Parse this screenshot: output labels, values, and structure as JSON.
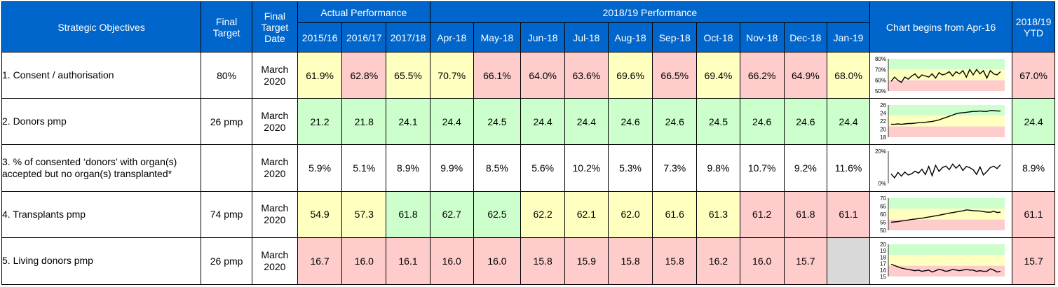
{
  "header": {
    "objectives": "Strategic Objectives",
    "final_target": "Final Target",
    "final_target_date": "Final Target Date",
    "actual_performance": "Actual Performance",
    "current_performance": "2018/19 Performance",
    "chart": "Chart begins from Apr-16",
    "ytd": "2018/19 YTD",
    "periods": [
      "2015/16",
      "2016/17",
      "2017/18",
      "Apr-18",
      "May-18",
      "Jun-18",
      "Jul-18",
      "Aug-18",
      "Sep-18",
      "Oct-18",
      "Nov-18",
      "Dec-18",
      "Jan-19"
    ]
  },
  "colors": {
    "header_bg": "#0066cc",
    "green": "#ccffcc",
    "amber": "#ffffc0",
    "red": "#ffcccc",
    "no_data": "#d9d9d9"
  },
  "rows": [
    {
      "objective": "1. Consent / authorisation",
      "target": "80%",
      "date": [
        "March",
        "2020"
      ],
      "values": [
        "61.9%",
        "62.8%",
        "65.5%",
        "70.7%",
        "66.1%",
        "64.0%",
        "63.6%",
        "69.6%",
        "66.5%",
        "69.4%",
        "66.2%",
        "64.9%",
        "68.0%"
      ],
      "status": [
        "amber",
        "red",
        "amber",
        "amber",
        "red",
        "red",
        "red",
        "amber",
        "red",
        "amber",
        "red",
        "red",
        "amber"
      ],
      "ytd": "67.0%",
      "ytd_status": "red",
      "spark": {
        "yticks": [
          "80%",
          "70%",
          "60%",
          "50%"
        ],
        "ymin": 50,
        "ymax": 80,
        "series": [
          59,
          63,
          60,
          58,
          63,
          61,
          64,
          66,
          62,
          65,
          64,
          63,
          66,
          62,
          67,
          65,
          66,
          68,
          64,
          68,
          66,
          69,
          63,
          70,
          65,
          70,
          66,
          69,
          62,
          69,
          66,
          65,
          68
        ]
      }
    },
    {
      "objective": "2. Donors pmp",
      "target": "26 pmp",
      "date": [
        "March",
        "2020"
      ],
      "values": [
        "21.2",
        "21.8",
        "24.1",
        "24.4",
        "24.5",
        "24.4",
        "24.4",
        "24.6",
        "24.6",
        "24.5",
        "24.6",
        "24.6",
        "24.4"
      ],
      "status": [
        "green",
        "green",
        "green",
        "green",
        "green",
        "green",
        "green",
        "green",
        "green",
        "green",
        "green",
        "green",
        "green"
      ],
      "ytd": "24.4",
      "ytd_status": "green",
      "spark": {
        "yticks": [
          "26",
          "24",
          "22",
          "20",
          "18"
        ],
        "ymin": 18,
        "ymax": 26,
        "series": [
          21.2,
          21.2,
          21.3,
          21.2,
          21.3,
          21.4,
          21.4,
          21.5,
          21.6,
          21.6,
          21.7,
          21.8,
          21.9,
          22.1,
          22.3,
          22.6,
          22.9,
          23.2,
          23.5,
          23.8,
          24.0,
          24.1,
          24.2,
          24.3,
          24.4,
          24.4,
          24.5,
          24.4,
          24.4,
          24.6,
          24.6,
          24.5,
          24.5
        ]
      }
    },
    {
      "objective": "3. % of consented ‘donors’ with organ(s) accepted but no organ(s) transplanted*",
      "target": "",
      "date": [
        "March",
        "2020"
      ],
      "values": [
        "5.9%",
        "5.1%",
        "8.9%",
        "9.9%",
        "8.5%",
        "5.6%",
        "10.2%",
        "5.3%",
        "7.3%",
        "9.8%",
        "10.7%",
        "9.2%",
        "11.6%"
      ],
      "status": [
        "none",
        "none",
        "none",
        "none",
        "none",
        "none",
        "none",
        "none",
        "none",
        "none",
        "none",
        "none",
        "none"
      ],
      "ytd": "8.9%",
      "ytd_status": "none",
      "spark": {
        "yticks": [
          "20%",
          "0%"
        ],
        "ymin": 0,
        "ymax": 20,
        "series": [
          5.9,
          3.5,
          6.8,
          4.5,
          7.0,
          5.2,
          6.0,
          7.6,
          6.3,
          8.8,
          5.5,
          10.5,
          4.8,
          11.2,
          7.5,
          9.8,
          10.8,
          8.5,
          12.0,
          9.5,
          11.5,
          8.0,
          10.5,
          9.8,
          8.5,
          5.6,
          10.2,
          5.3,
          7.3,
          9.8,
          10.7,
          9.2,
          11.6
        ]
      }
    },
    {
      "objective": "4. Transplants pmp",
      "target": "74 pmp",
      "date": [
        "March",
        "2020"
      ],
      "values": [
        "54.9",
        "57.3",
        "61.8",
        "62.7",
        "62.5",
        "62.2",
        "62.1",
        "62.0",
        "61.6",
        "61.3",
        "61.2",
        "61.8",
        "61.1"
      ],
      "status": [
        "amber",
        "amber",
        "green",
        "green",
        "green",
        "amber",
        "amber",
        "amber",
        "amber",
        "amber",
        "red",
        "red",
        "red"
      ],
      "ytd": "61.1",
      "ytd_status": "red",
      "spark": {
        "yticks": [
          "70",
          "65",
          "60",
          "55",
          "50"
        ],
        "ymin": 50,
        "ymax": 70,
        "series": [
          55.0,
          55.2,
          55.4,
          55.8,
          56.0,
          56.4,
          56.8,
          57.0,
          57.3,
          57.5,
          57.9,
          58.2,
          58.6,
          59.0,
          59.4,
          59.8,
          60.2,
          60.7,
          61.0,
          61.4,
          61.8,
          62.1,
          62.7,
          62.5,
          62.2,
          62.1,
          62.0,
          61.6,
          61.3,
          61.2,
          61.8,
          61.1,
          61.2
        ]
      }
    },
    {
      "objective": "5. Living donors pmp",
      "target": "26 pmp",
      "date": [
        "March",
        "2020"
      ],
      "values": [
        "16.7",
        "16.0",
        "16.1",
        "16.0",
        "16.0",
        "15.8",
        "15.9",
        "15.8",
        "15.8",
        "16.2",
        "16.0",
        "15.7",
        ""
      ],
      "status": [
        "red",
        "red",
        "red",
        "red",
        "red",
        "red",
        "red",
        "red",
        "red",
        "red",
        "red",
        "red",
        "no-data"
      ],
      "ytd": "15.7",
      "ytd_status": "red",
      "spark": {
        "yticks": [
          "20",
          "19",
          "18",
          "17",
          "16",
          "15"
        ],
        "ymin": 15,
        "ymax": 20,
        "series": [
          16.9,
          16.7,
          16.5,
          16.3,
          16.2,
          16.1,
          16.0,
          15.9,
          16.0,
          15.8,
          15.9,
          16.0,
          15.7,
          15.9,
          16.1,
          16.0,
          15.8,
          15.9,
          16.1,
          16.0,
          15.9,
          16.0,
          16.1,
          16.0,
          16.0,
          15.8,
          15.9,
          15.8,
          15.8,
          16.2,
          16.0,
          15.7,
          15.8
        ]
      }
    }
  ]
}
